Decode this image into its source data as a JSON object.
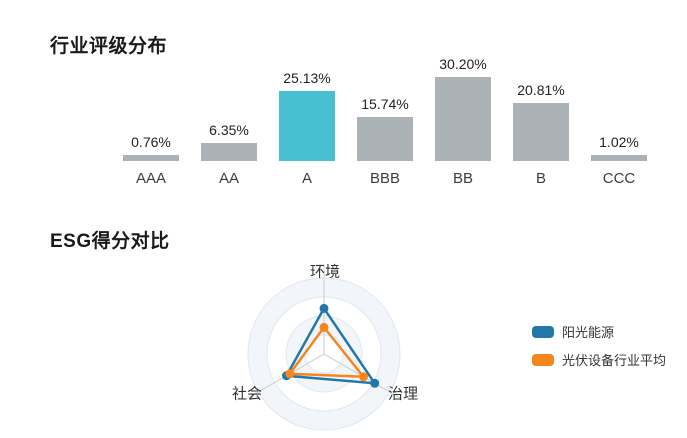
{
  "page": {
    "background": "#ffffff"
  },
  "chart_data": [
    {
      "type": "bar",
      "title": "行业评级分布",
      "categories": [
        "AAA",
        "AA",
        "A",
        "BBB",
        "BB",
        "B",
        "CCC"
      ],
      "values": [
        0.76,
        6.35,
        25.13,
        15.74,
        30.2,
        20.81,
        1.02
      ],
      "value_labels": [
        "0.76%",
        "6.35%",
        "25.13%",
        "15.74%",
        "30.20%",
        "20.81%",
        "1.02%"
      ],
      "unit": "%",
      "highlight_category": "A",
      "ylim": [
        0,
        32
      ],
      "grid": false,
      "axis_lines": false,
      "colors": {
        "bar": "#abb2b6",
        "highlight": "#49bfd4",
        "value_text": "#222222",
        "category_text": "#3d3d3d"
      }
    },
    {
      "type": "radar",
      "title": "ESG得分对比",
      "axes": [
        "环境",
        "治理",
        "社会"
      ],
      "max": 100,
      "rings": 4,
      "series": [
        {
          "name": "阳光能源",
          "color": "#2178a8",
          "values": [
            60,
            77,
            57
          ]
        },
        {
          "name": "光伏设备行业平均",
          "color": "#f5851f",
          "values": [
            35,
            60,
            52
          ]
        }
      ],
      "legend_position": "right",
      "colors": {
        "ring_fill": "#f2f6fb",
        "ring_stroke": "#e0e7f0",
        "axis_line": "#cccccc",
        "axis_text": "#333333"
      }
    }
  ]
}
